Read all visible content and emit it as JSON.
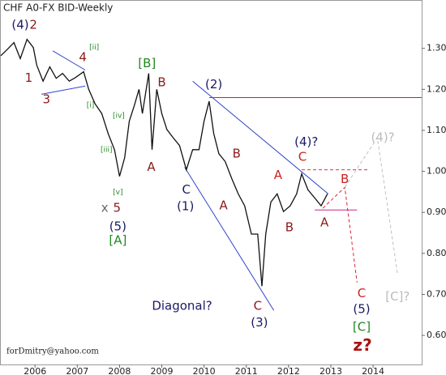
{
  "chart_data": {
    "type": "line",
    "title": "CHF A0-FX BID-Weekly",
    "footer": "forDmitry@yahoo.com",
    "xlim": [
      2005.69,
      2015.65
    ],
    "ylim": [
      0.529,
      1.416
    ],
    "xticks": [
      {
        "value": 2006.5,
        "label": "2006"
      },
      {
        "value": 2007.5,
        "label": "2007"
      },
      {
        "value": 2008.5,
        "label": "2008"
      },
      {
        "value": 2009.5,
        "label": "2009"
      },
      {
        "value": 2010.5,
        "label": "2010"
      },
      {
        "value": 2011.5,
        "label": "2011"
      },
      {
        "value": 2012.5,
        "label": "2012"
      },
      {
        "value": 2013.5,
        "label": "2013"
      },
      {
        "value": 2014.5,
        "label": "2014"
      }
    ],
    "yticks": [
      {
        "value": 1.3,
        "label": "1.30"
      },
      {
        "value": 1.2,
        "label": "1.20"
      },
      {
        "value": 1.1,
        "label": "1.10"
      },
      {
        "value": 1.0,
        "label": "1.00"
      },
      {
        "value": 0.9,
        "label": "0.900"
      },
      {
        "value": 0.8,
        "label": "0.800"
      },
      {
        "value": 0.7,
        "label": "0.700"
      },
      {
        "value": 0.6,
        "label": "0.600"
      }
    ],
    "series": [
      {
        "color": "#111111",
        "x": [
          2005.69,
          2005.85,
          2006.0,
          2006.15,
          2006.31,
          2006.46,
          2006.54,
          2006.69,
          2006.85,
          2007.0,
          2007.15,
          2007.31,
          2007.46,
          2007.65,
          2007.77,
          2007.92,
          2008.08,
          2008.23,
          2008.38,
          2008.5,
          2008.62,
          2008.73,
          2008.85,
          2008.96,
          2009.04,
          2009.19,
          2009.27,
          2009.38,
          2009.5,
          2009.62,
          2009.77,
          2009.92,
          2010.08,
          2010.23,
          2010.38,
          2010.5,
          2010.62,
          2010.73,
          2010.85,
          2011.0,
          2011.15,
          2011.31,
          2011.46,
          2011.62,
          2011.77,
          2011.87,
          2011.96,
          2012.08,
          2012.23,
          2012.38,
          2012.54,
          2012.69,
          2012.81,
          2012.96,
          2013.12,
          2013.27,
          2013.42
        ],
        "values": [
          1.282,
          1.298,
          1.314,
          1.275,
          1.322,
          1.302,
          1.259,
          1.22,
          1.255,
          1.227,
          1.239,
          1.22,
          1.229,
          1.243,
          1.2,
          1.165,
          1.141,
          1.092,
          1.053,
          0.988,
          1.033,
          1.122,
          1.161,
          1.2,
          1.141,
          1.239,
          1.053,
          1.2,
          1.141,
          1.102,
          1.082,
          1.063,
          1.004,
          1.053,
          1.053,
          1.122,
          1.171,
          1.092,
          1.043,
          1.024,
          0.984,
          0.945,
          0.916,
          0.847,
          0.847,
          0.72,
          0.847,
          0.925,
          0.945,
          0.902,
          0.916,
          0.945,
          0.994,
          0.955,
          0.935,
          0.916,
          0.945
        ]
      }
    ],
    "lines": [
      {
        "color": "#3344cc",
        "dashed": false,
        "x": [
          2006.92,
          2007.69
        ],
        "y": [
          1.294,
          1.247
        ]
      },
      {
        "color": "#3344cc",
        "dashed": false,
        "x": [
          2006.65,
          2007.69
        ],
        "y": [
          1.188,
          1.208
        ]
      },
      {
        "color": "#3344cc",
        "dashed": false,
        "x": [
          2010.23,
          2013.44
        ],
        "y": [
          1.22,
          0.945
        ]
      },
      {
        "color": "#3344cc",
        "dashed": false,
        "x": [
          2010.04,
          2012.15
        ],
        "y": [
          1.01,
          0.661
        ]
      },
      {
        "color": "#cc2222",
        "dashed": false,
        "x": [
          2010.62,
          2015.65
        ],
        "y": [
          1.18,
          1.18
        ]
      },
      {
        "color": "#dd3344",
        "dashed": true,
        "x": [
          2012.81,
          2014.4
        ],
        "y": [
          1.004,
          1.004
        ]
      },
      {
        "color": "#cc2288",
        "dashed": false,
        "x": [
          2013.12,
          2014.12
        ],
        "y": [
          0.906,
          0.906
        ]
      },
      {
        "color": "#dd2233",
        "dashed": true,
        "x": [
          2013.31,
          2013.83,
          2014.12
        ],
        "y": [
          0.91,
          0.961,
          0.729
        ]
      },
      {
        "color": "#c0c0c0",
        "dashed": true,
        "x": [
          2013.83,
          2014.6,
          2015.08
        ],
        "y": [
          0.961,
          1.082,
          0.749
        ]
      }
    ],
    "annotations": [
      {
        "text": "(4)",
        "x": 2006.15,
        "y": 1.357,
        "color": "#1a1a66"
      },
      {
        "text": "2",
        "x": 2006.46,
        "y": 1.357,
        "color": "#8b1a1a"
      },
      {
        "text": "4",
        "x": 2007.63,
        "y": 1.278,
        "color": "#8b1a1a"
      },
      {
        "text": "[ii]",
        "x": 2007.9,
        "y": 1.302,
        "color": "#228822"
      },
      {
        "text": "1",
        "x": 2006.35,
        "y": 1.227,
        "color": "#8b1a1a"
      },
      {
        "text": "3",
        "x": 2006.77,
        "y": 1.175,
        "color": "#8b1a1a"
      },
      {
        "text": "[i]",
        "x": 2007.81,
        "y": 1.161,
        "color": "#228822"
      },
      {
        "text": "[iv]",
        "x": 2008.48,
        "y": 1.135,
        "color": "#228822"
      },
      {
        "text": "[iii]",
        "x": 2008.19,
        "y": 1.053,
        "color": "#228822"
      },
      {
        "text": "[v]",
        "x": 2008.46,
        "y": 0.949,
        "color": "#228822"
      },
      {
        "text": "x",
        "x": 2008.15,
        "y": 0.91,
        "color": "#666666"
      },
      {
        "text": "5",
        "x": 2008.44,
        "y": 0.91,
        "color": "#8b1a1a"
      },
      {
        "text": "(5)",
        "x": 2008.46,
        "y": 0.865,
        "color": "#1a1a66"
      },
      {
        "text": "[A]",
        "x": 2008.46,
        "y": 0.831,
        "color": "#228822"
      },
      {
        "text": "[B]",
        "x": 2009.15,
        "y": 1.263,
        "color": "#228822"
      },
      {
        "text": "B",
        "x": 2009.5,
        "y": 1.216,
        "color": "#8b1a1a"
      },
      {
        "text": "A",
        "x": 2009.25,
        "y": 1.01,
        "color": "#8b1a1a"
      },
      {
        "text": "(2)",
        "x": 2010.73,
        "y": 1.212,
        "color": "#1a1a66"
      },
      {
        "text": "C",
        "x": 2010.08,
        "y": 0.955,
        "color": "#1a1a66"
      },
      {
        "text": "(1)",
        "x": 2010.06,
        "y": 0.914,
        "color": "#1a1a66"
      },
      {
        "text": "B",
        "x": 2011.27,
        "y": 1.043,
        "color": "#8b1a1a"
      },
      {
        "text": "A",
        "x": 2010.96,
        "y": 0.916,
        "color": "#8b1a1a"
      },
      {
        "text": "(4)?",
        "x": 2012.92,
        "y": 1.071,
        "color": "#1a1a66"
      },
      {
        "text": "C",
        "x": 2012.83,
        "y": 1.035,
        "color": "#cc2222"
      },
      {
        "text": "A",
        "x": 2012.25,
        "y": 0.99,
        "color": "#cc2222"
      },
      {
        "text": "B",
        "x": 2013.83,
        "y": 0.98,
        "color": "#cc2222"
      },
      {
        "text": "B",
        "x": 2012.52,
        "y": 0.863,
        "color": "#8b1a1a"
      },
      {
        "text": "A",
        "x": 2013.35,
        "y": 0.875,
        "color": "#8b1a1a"
      },
      {
        "text": "(4)?",
        "x": 2014.73,
        "y": 1.082,
        "color": "#bbbbbb"
      },
      {
        "text": "Diagonal?",
        "x": 2009.98,
        "y": 0.671,
        "color": "#1a1a66"
      },
      {
        "text": "C",
        "x": 2011.77,
        "y": 0.671,
        "color": "#8b1a1a"
      },
      {
        "text": "(3)",
        "x": 2011.81,
        "y": 0.631,
        "color": "#1a1a66"
      },
      {
        "text": "C",
        "x": 2014.23,
        "y": 0.702,
        "color": "#cc2222"
      },
      {
        "text": "(5)",
        "x": 2014.23,
        "y": 0.663,
        "color": "#1a1a66"
      },
      {
        "text": "[C]",
        "x": 2014.23,
        "y": 0.62,
        "color": "#228822"
      },
      {
        "text": "z?",
        "x": 2014.25,
        "y": 0.573,
        "color": "#aa1111"
      },
      {
        "text": "[C]?",
        "x": 2015.08,
        "y": 0.694,
        "color": "#bbbbbb"
      }
    ]
  }
}
